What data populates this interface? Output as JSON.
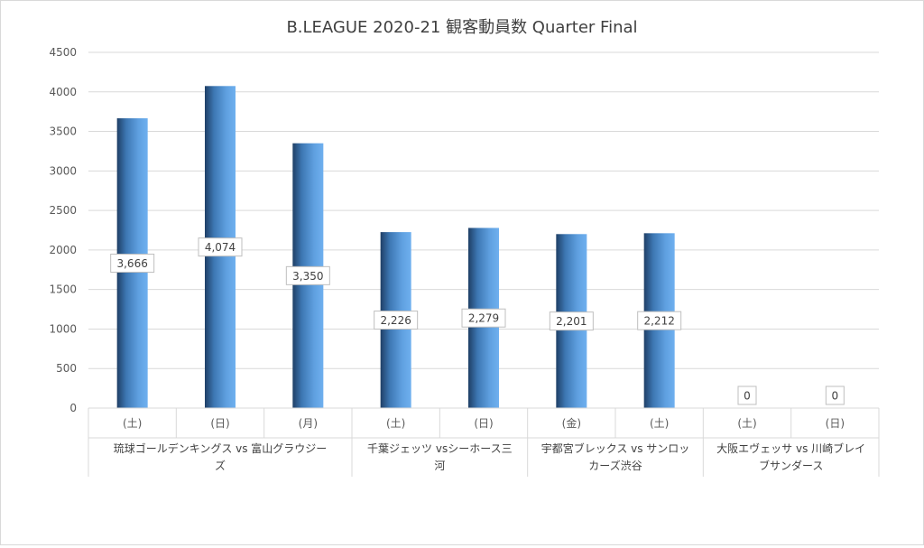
{
  "chart_data": {
    "type": "bar",
    "title": "B.LEAGUE 2020-21 観客動員数 Quarter Final",
    "xlabel": "",
    "ylabel": "",
    "ylim": [
      0,
      4500
    ],
    "yticks": [
      "0",
      "500",
      "1000",
      "1500",
      "2000",
      "2500",
      "3000",
      "3500",
      "4000",
      "4500"
    ],
    "grid": true,
    "legend": "none",
    "bar_color": "#5b9bd5",
    "categories": [
      "(土)",
      "(日)",
      "(月)",
      "(土)",
      "(日)",
      "(金)",
      "(土)",
      "(土)",
      "(日)"
    ],
    "values": [
      3666,
      4074,
      3350,
      2226,
      2279,
      2201,
      2212,
      0,
      0
    ],
    "data_labels": [
      "3,666",
      "4,074",
      "3,350",
      "2,226",
      "2,279",
      "2,201",
      "2,212",
      "0",
      "0"
    ],
    "groups": [
      {
        "label_lines": [
          "琉球ゴールデンキングス vs 富山グラウジー",
          "ズ"
        ],
        "count": 3
      },
      {
        "label_lines": [
          "千葉ジェッツ vsシーホース三",
          "河"
        ],
        "count": 2
      },
      {
        "label_lines": [
          "宇都宮ブレックス vs サンロッ",
          "カーズ渋谷"
        ],
        "count": 2
      },
      {
        "label_lines": [
          "大阪エヴェッサ vs 川崎ブレイ",
          "ブサンダース"
        ],
        "count": 2
      }
    ]
  }
}
